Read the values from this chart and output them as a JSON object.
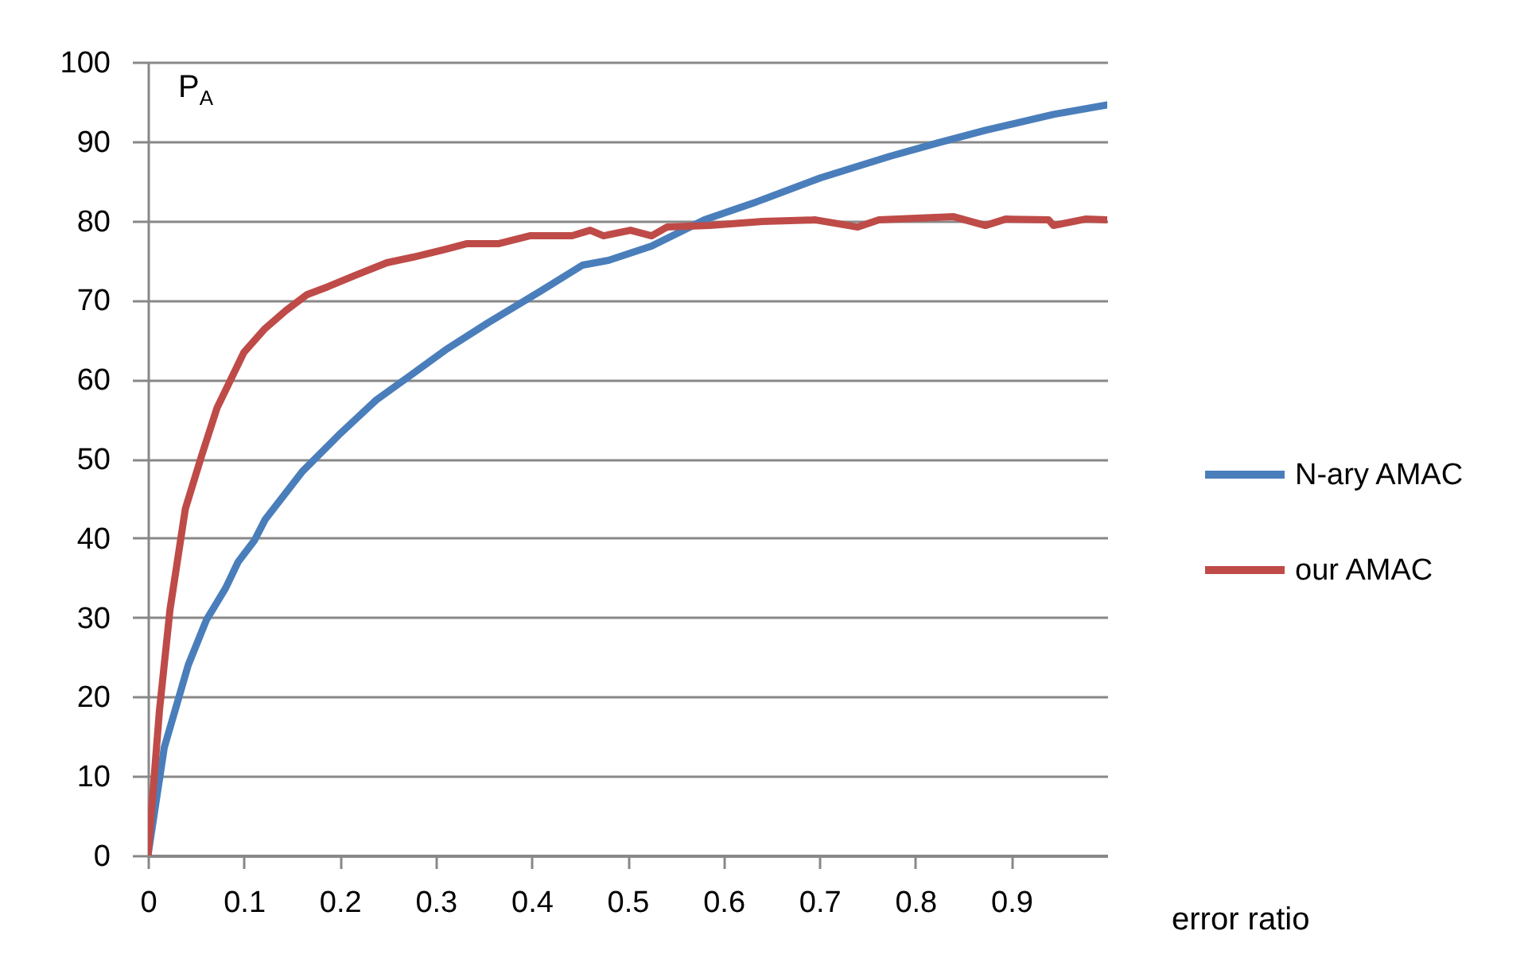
{
  "chart_data": {
    "type": "line",
    "xlabel": "error ratio",
    "ylabel": "P$_{A}$",
    "xlim": [
      0,
      1
    ],
    "xticks": [
      0,
      0.1,
      0.2,
      0.3,
      0.4,
      0.5,
      0.6,
      0.7,
      0.8,
      0.9
    ],
    "ylim": [
      0,
      100
    ],
    "yticks": [
      0,
      10,
      20,
      30,
      40,
      50,
      60,
      70,
      80,
      90,
      100
    ],
    "grid": "y",
    "legend": "right",
    "marker": "none",
    "line_style": "solid",
    "series": [
      {
        "name": "N-ary AMAC",
        "color": "#4a7ebb",
        "x": [
          0,
          0.017,
          0.042,
          0.061,
          0.081,
          0.094,
          0.111,
          0.122,
          0.161,
          0.199,
          0.238,
          0.276,
          0.31,
          0.354,
          0.409,
          0.453,
          0.48,
          0.525,
          0.58,
          0.635,
          0.701,
          0.773,
          0.823,
          0.873,
          0.944,
          1.0
        ],
        "values": [
          0,
          13.6,
          24,
          29.7,
          33.7,
          37,
          39.7,
          42.3,
          48.4,
          53,
          57.4,
          60.7,
          63.7,
          67.1,
          71.1,
          74.4,
          75,
          76.8,
          80.1,
          82.4,
          85.4,
          88.1,
          89.8,
          91.4,
          93.4,
          94.6
        ]
      },
      {
        "name": "our AMAC",
        "color": "#be4b48",
        "x": [
          0,
          0.012,
          0.023,
          0.039,
          0.056,
          0.072,
          0.1,
          0.122,
          0.144,
          0.166,
          0.188,
          0.216,
          0.249,
          0.276,
          0.31,
          0.332,
          0.365,
          0.398,
          0.442,
          0.461,
          0.475,
          0.503,
          0.525,
          0.541,
          0.586,
          0.641,
          0.696,
          0.74,
          0.762,
          0.84,
          0.873,
          0.894,
          0.939,
          0.944,
          0.977,
          1.0
        ],
        "values": [
          0,
          18.3,
          31,
          43.7,
          50.4,
          56.4,
          63.4,
          66.4,
          68.7,
          70.7,
          71.7,
          73.1,
          74.7,
          75.4,
          76.4,
          77.1,
          77.1,
          78.1,
          78.1,
          78.8,
          78.1,
          78.8,
          78.1,
          79.2,
          79.4,
          79.9,
          80.1,
          79.2,
          80.1,
          80.5,
          79.4,
          80.2,
          80.1,
          79.4,
          80.2,
          80.1
        ]
      }
    ]
  }
}
